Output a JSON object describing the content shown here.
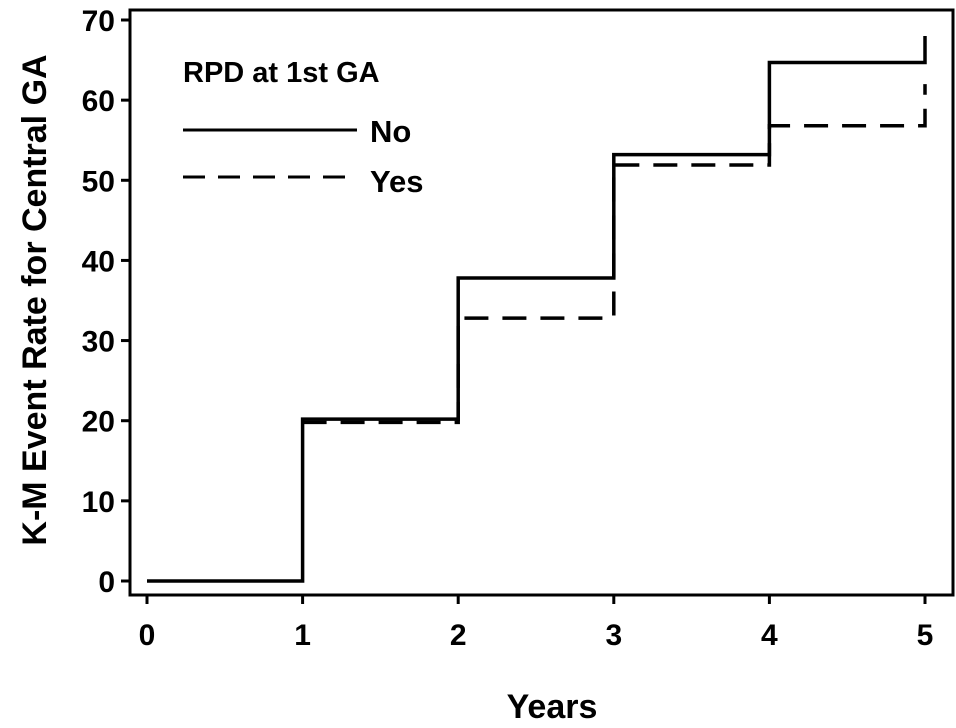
{
  "chart_data": {
    "type": "line",
    "step": true,
    "xlabel": "Years",
    "ylabel": "K-M Event Rate for Central GA",
    "xlim": [
      0,
      5
    ],
    "ylim": [
      0,
      70
    ],
    "xticks": [
      "0",
      "1",
      "2",
      "3",
      "4",
      "5"
    ],
    "yticks": [
      "0",
      "10",
      "20",
      "30",
      "40",
      "50",
      "60",
      "70"
    ],
    "grid": false,
    "legend": {
      "title": "RPD at 1st GA",
      "position": "top-left",
      "entries": [
        "No",
        "Yes"
      ]
    },
    "series": [
      {
        "name": "No",
        "line_style": "solid",
        "points": [
          [
            0,
            0
          ],
          [
            1,
            20.2
          ],
          [
            2,
            37.8
          ],
          [
            3,
            53.2
          ],
          [
            4,
            64.7
          ],
          [
            5,
            68.0
          ]
        ]
      },
      {
        "name": "Yes",
        "line_style": "dashed",
        "points": [
          [
            1,
            19.8
          ],
          [
            2,
            32.8
          ],
          [
            3,
            51.9
          ],
          [
            4,
            56.8
          ],
          [
            5,
            62.0
          ]
        ]
      }
    ],
    "colors": {
      "line": "#000000",
      "axis": "#000000"
    }
  }
}
